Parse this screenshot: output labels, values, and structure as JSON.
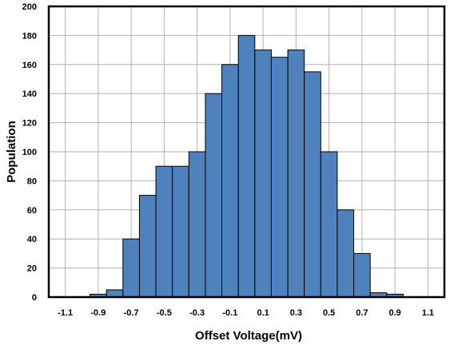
{
  "chart_data": {
    "type": "bar",
    "title": "",
    "xlabel": "Offset Voltage(mV)",
    "ylabel": "Population",
    "xlim": [
      -1.2,
      1.2
    ],
    "ylim": [
      0,
      200
    ],
    "bin_width": 0.1,
    "x_ticks": [
      -1.1,
      -0.9,
      -0.7,
      -0.5,
      -0.3,
      -0.1,
      0.1,
      0.3,
      0.5,
      0.7,
      0.9,
      1.1
    ],
    "x_tick_labels": [
      "-1.1",
      "-0.9",
      "-0.7",
      "-0.5",
      "-0.3",
      "-0.1",
      "0.1",
      "0.3",
      "0.5",
      "0.7",
      "0.9",
      "1.1"
    ],
    "y_ticks": [
      0,
      20,
      40,
      60,
      80,
      100,
      120,
      140,
      160,
      180,
      200
    ],
    "y_tick_labels": [
      "0",
      "20",
      "40",
      "60",
      "80",
      "100",
      "120",
      "140",
      "160",
      "180",
      "200"
    ],
    "grid": true,
    "bar_color": "#4f81bd",
    "bar_edge_color": "#000000",
    "categories": [
      "-1.1",
      "-1.0",
      "-0.9",
      "-0.8",
      "-0.7",
      "-0.6",
      "-0.5",
      "-0.4",
      "-0.3",
      "-0.2",
      "-0.1",
      "0.0",
      "0.1",
      "0.2",
      "0.3",
      "0.4",
      "0.5",
      "0.6",
      "0.7",
      "0.8",
      "0.9",
      "1.0",
      "1.1"
    ],
    "values": [
      0,
      0,
      2,
      5,
      40,
      70,
      90,
      90,
      100,
      140,
      160,
      180,
      170,
      165,
      170,
      155,
      100,
      60,
      30,
      3,
      2,
      0,
      0
    ]
  }
}
